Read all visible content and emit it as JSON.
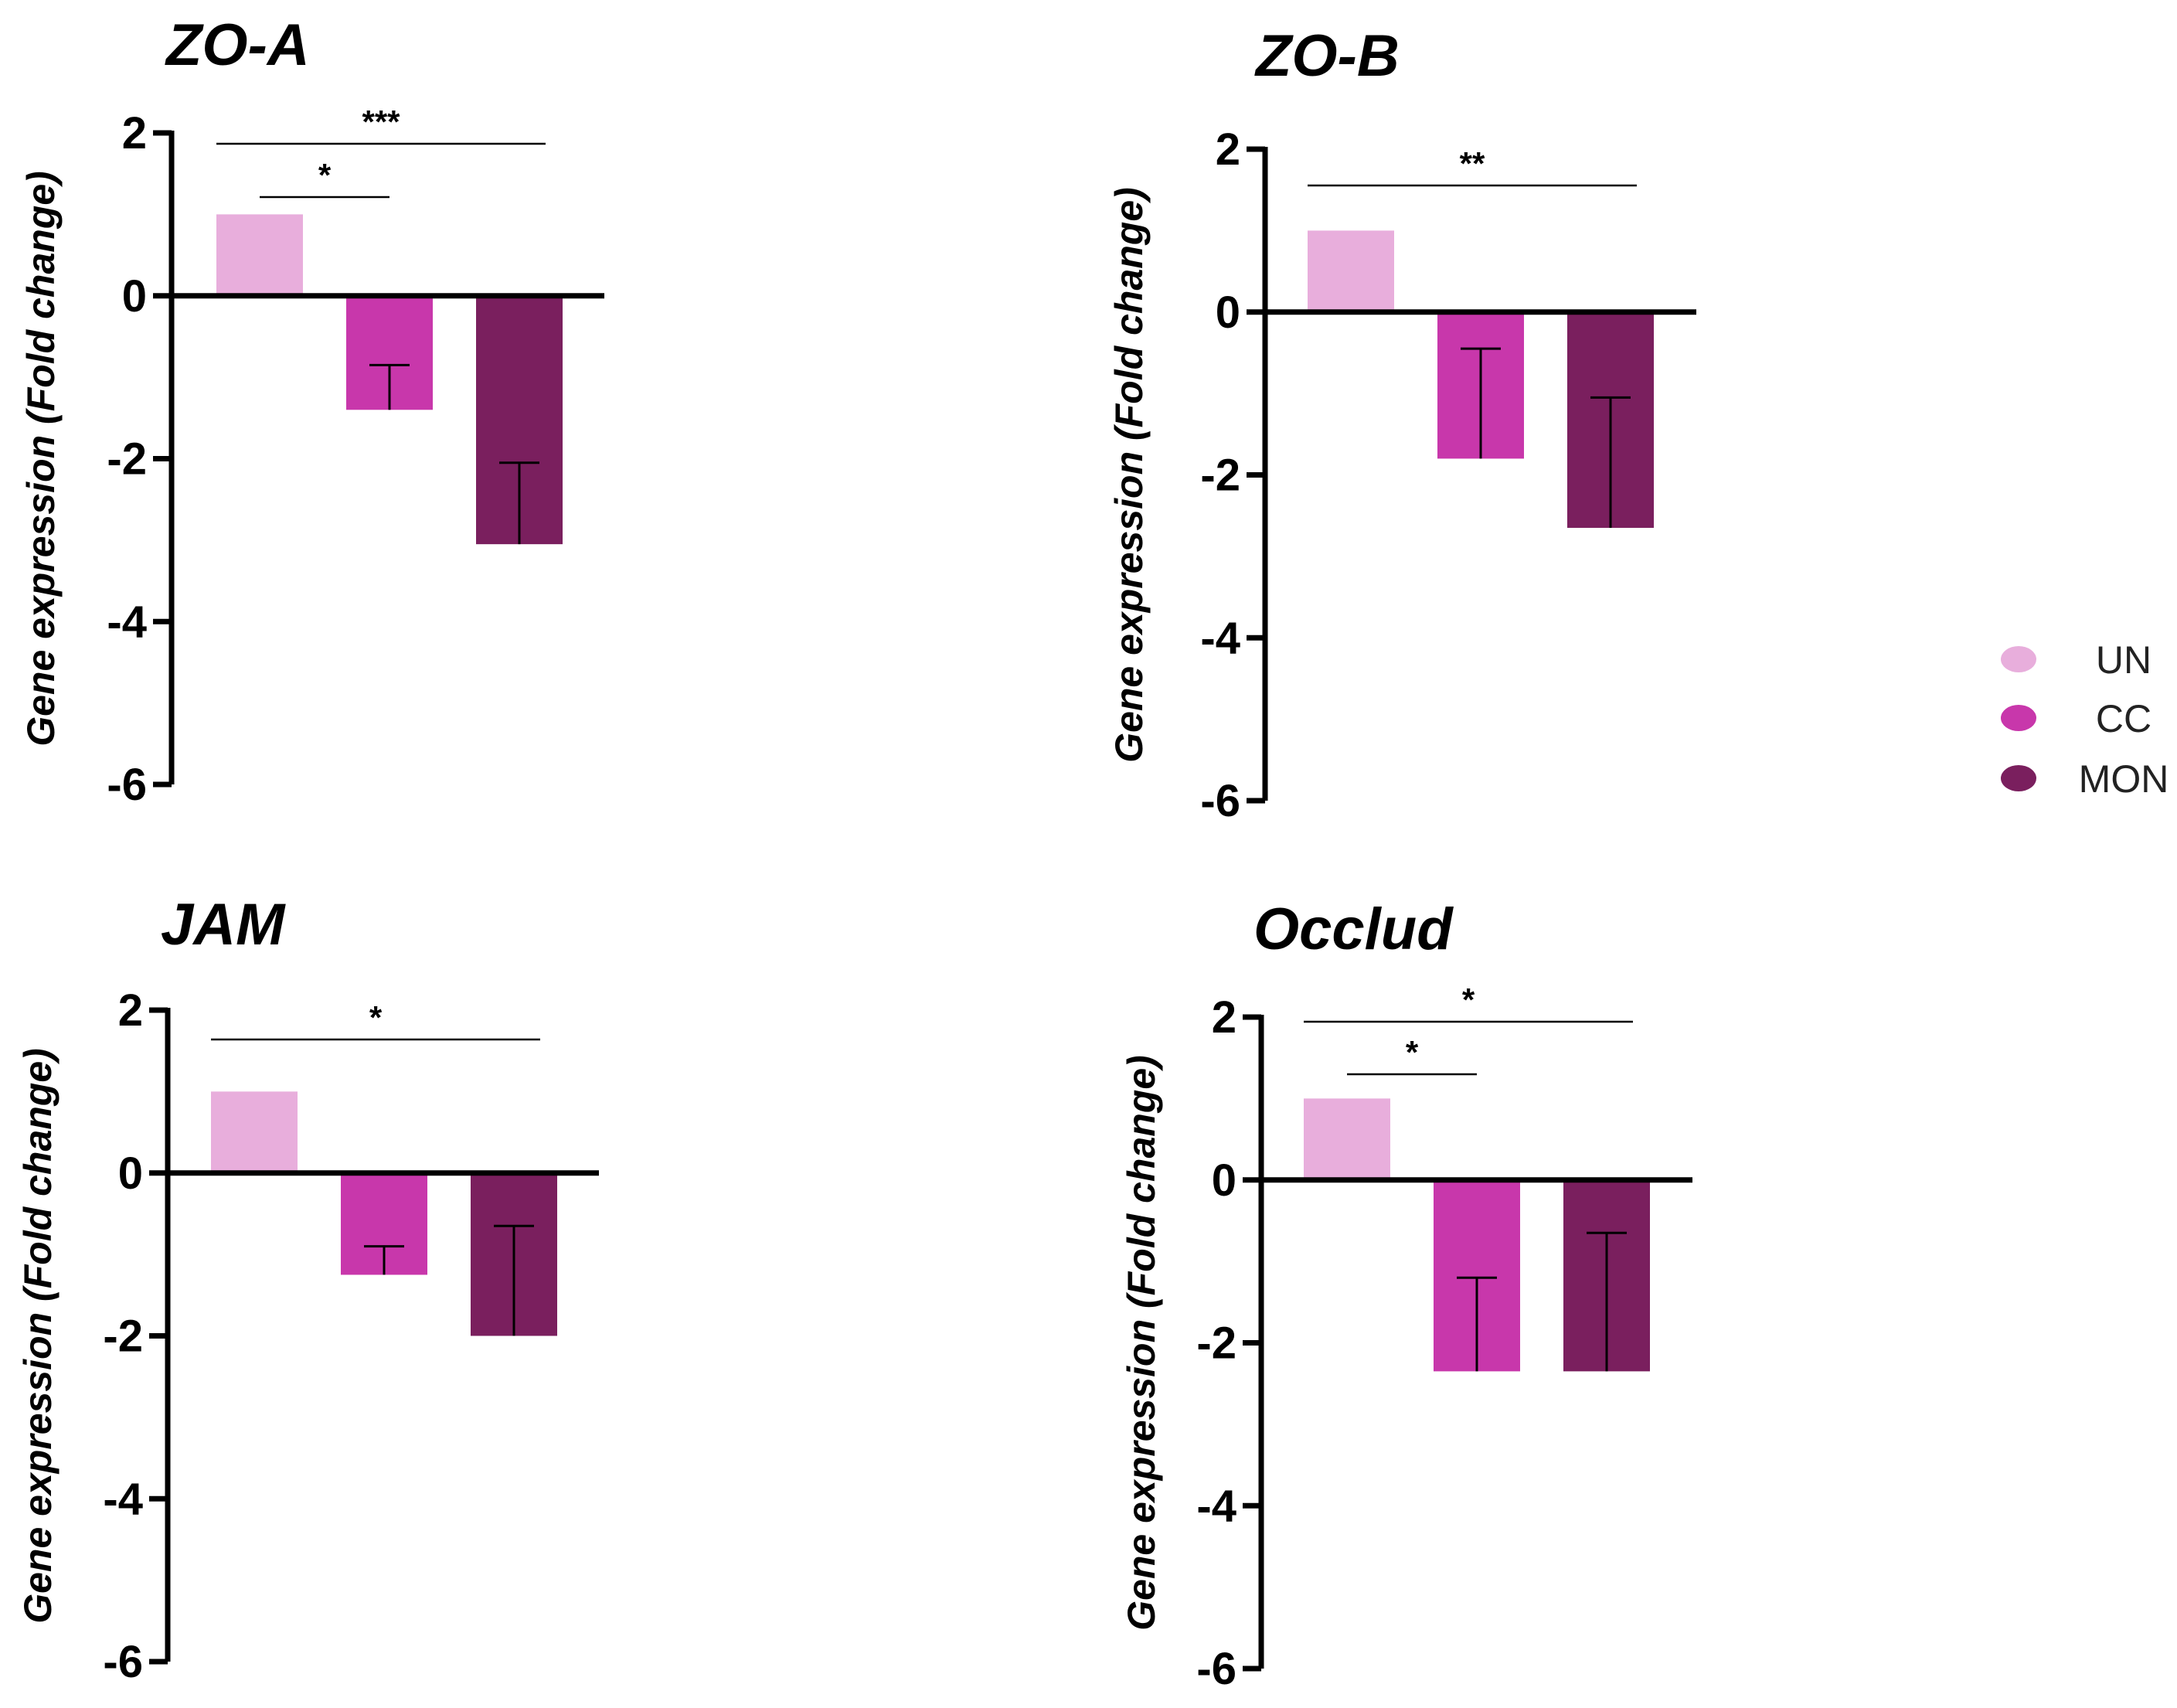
{
  "legend": {
    "items": [
      {
        "label": "UN",
        "color": "#e8aedc"
      },
      {
        "label": "CC",
        "color": "#c837ab"
      },
      {
        "label": "MON",
        "color": "#7a1f5e"
      }
    ]
  },
  "chart_data": [
    {
      "type": "bar",
      "title": "ZO-A",
      "ylabel": "Gene expression (Fold change)",
      "categories": [
        "UN",
        "CC",
        "MON"
      ],
      "values": [
        1.0,
        -1.4,
        -3.05
      ],
      "error": [
        0,
        0.55,
        1.0
      ],
      "ylim": [
        -6,
        2
      ],
      "yticks": [
        "2",
        "0",
        "-2",
        "-4",
        "-6"
      ],
      "significance": [
        {
          "from": "UN",
          "to": "CC",
          "label": "*"
        },
        {
          "from": "UN",
          "to": "MON",
          "label": "***"
        }
      ]
    },
    {
      "type": "bar",
      "title": "ZO-B",
      "ylabel": "Gene expression (Fold change)",
      "categories": [
        "UN",
        "CC",
        "MON"
      ],
      "values": [
        1.0,
        -1.8,
        -2.65
      ],
      "error": [
        0,
        1.35,
        1.6
      ],
      "ylim": [
        -6,
        2
      ],
      "yticks": [
        "2",
        "0",
        "-2",
        "-4",
        "-6"
      ],
      "significance": [
        {
          "from": "UN",
          "to": "MON",
          "label": "**"
        }
      ]
    },
    {
      "type": "bar",
      "title": "JAM",
      "ylabel": "Gene expression (Fold change)",
      "categories": [
        "UN",
        "CC",
        "MON"
      ],
      "values": [
        1.0,
        -1.25,
        -2.0
      ],
      "error": [
        0,
        0.35,
        1.35
      ],
      "ylim": [
        -6,
        2
      ],
      "yticks": [
        "2",
        "0",
        "-2",
        "-4",
        "-6"
      ],
      "significance": [
        {
          "from": "UN",
          "to": "MON",
          "label": "*"
        }
      ]
    },
    {
      "type": "bar",
      "title": "Occlud",
      "ylabel": "Gene expression (Fold change)",
      "categories": [
        "UN",
        "CC",
        "MON"
      ],
      "values": [
        1.0,
        -2.35,
        -2.35
      ],
      "error": [
        0,
        1.15,
        1.7
      ],
      "ylim": [
        -6,
        2
      ],
      "yticks": [
        "2",
        "0",
        "-2",
        "-4",
        "-6"
      ],
      "significance": [
        {
          "from": "UN",
          "to": "CC",
          "label": "*"
        },
        {
          "from": "UN",
          "to": "MON",
          "label": "*"
        }
      ]
    }
  ]
}
